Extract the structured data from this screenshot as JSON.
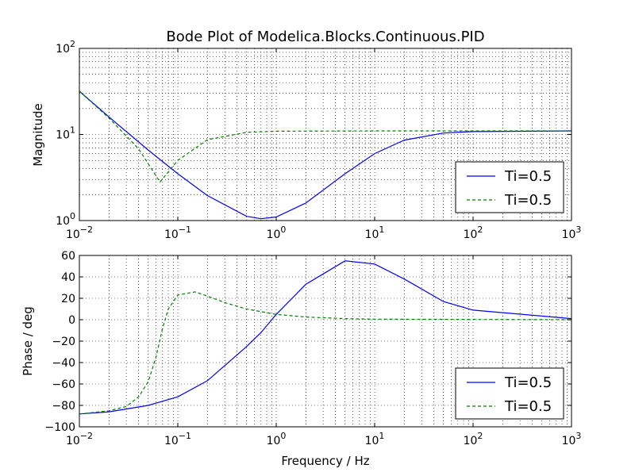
{
  "chart_data": [
    {
      "type": "line",
      "title": "Bode Plot of Modelica.Blocks.Continuous.PID",
      "xlabel": "",
      "ylabel": "Magnitude",
      "xscale": "log",
      "yscale": "log",
      "xlim": [
        0.01,
        1000
      ],
      "ylim": [
        1,
        100
      ],
      "x_ticks": [
        "10^-2",
        "10^-1",
        "10^0",
        "10^1",
        "10^2",
        "10^3"
      ],
      "y_ticks": [
        "10^0",
        "10^1",
        "10^2"
      ],
      "grid": true,
      "legend_position": "lower-right",
      "series": [
        {
          "name": "Ti=0.5",
          "color": "#0000ff",
          "style": "solid",
          "x": [
            0.01,
            0.02,
            0.05,
            0.1,
            0.2,
            0.5,
            0.7,
            1,
            2,
            5,
            10,
            20,
            50,
            100,
            1000
          ],
          "y": [
            31.8,
            16.0,
            6.6,
            3.5,
            1.95,
            1.12,
            1.05,
            1.1,
            1.6,
            3.5,
            6.0,
            8.6,
            10.4,
            10.8,
            11.0
          ]
        },
        {
          "name": "Ti=0.5",
          "color": "#008000",
          "style": "dashed",
          "x": [
            0.01,
            0.02,
            0.04,
            0.066,
            0.1,
            0.2,
            0.5,
            1,
            10,
            1000
          ],
          "y": [
            31.8,
            15.5,
            6.8,
            2.8,
            5.0,
            8.7,
            10.6,
            10.9,
            11.0,
            11.0
          ]
        }
      ]
    },
    {
      "type": "line",
      "title": "",
      "xlabel": "Frequency / Hz",
      "ylabel": "Phase / deg",
      "xscale": "log",
      "yscale": "linear",
      "xlim": [
        0.01,
        1000
      ],
      "ylim": [
        -100,
        60
      ],
      "x_ticks": [
        "10^-2",
        "10^-1",
        "10^0",
        "10^1",
        "10^2",
        "10^3"
      ],
      "y_ticks": [
        "60",
        "40",
        "20",
        "0",
        "−20",
        "−40",
        "−60",
        "−80",
        "−100"
      ],
      "grid": true,
      "legend_position": "lower-right",
      "series": [
        {
          "name": "Ti=0.5",
          "color": "#0000ff",
          "style": "solid",
          "x": [
            0.01,
            0.02,
            0.05,
            0.1,
            0.2,
            0.5,
            0.7,
            1,
            2,
            5,
            10,
            20,
            50,
            100,
            1000
          ],
          "y": [
            -88,
            -86,
            -80,
            -72,
            -57,
            -25,
            -12,
            5,
            33,
            55,
            52,
            38,
            17,
            9,
            1
          ]
        },
        {
          "name": "Ti=0.5",
          "color": "#008000",
          "style": "dashed",
          "x": [
            0.01,
            0.02,
            0.03,
            0.04,
            0.05,
            0.06,
            0.07,
            0.08,
            0.1,
            0.15,
            0.2,
            0.3,
            0.5,
            1,
            2,
            5,
            10,
            1000
          ],
          "y": [
            -88,
            -85,
            -81,
            -72,
            -58,
            -35,
            -8,
            10,
            23,
            26,
            22,
            16,
            10,
            5,
            2.5,
            1,
            0.5,
            0
          ]
        }
      ]
    }
  ]
}
